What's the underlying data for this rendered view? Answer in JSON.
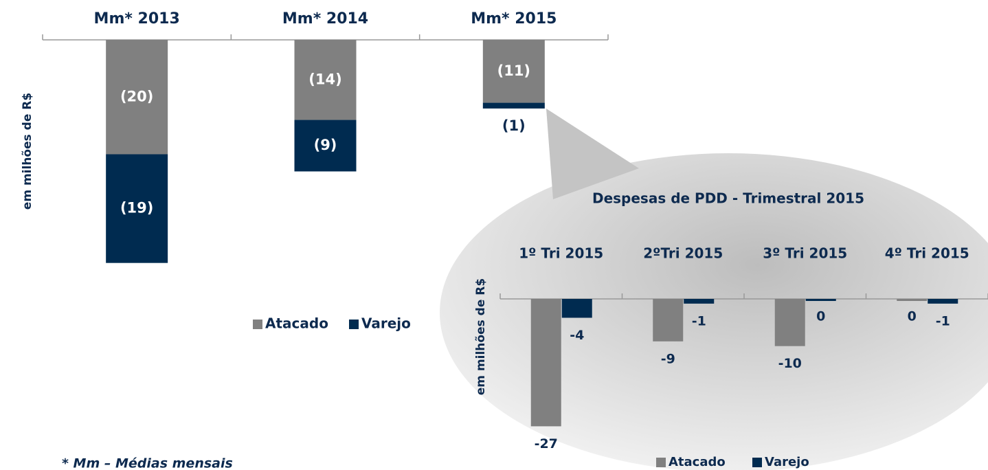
{
  "chart_data": [
    {
      "type": "bar",
      "stacked": true,
      "categories": [
        "Mm*  2013",
        "Mm*  2014",
        "Mm* 2015"
      ],
      "y_label": "em  milhões de R$",
      "ylim": [
        -40,
        0
      ],
      "legend": "bottom",
      "series": [
        {
          "name": "Atacado",
          "color": "#808080",
          "values": [
            -20,
            -14,
            -11
          ],
          "value_labels": [
            "(20)",
            "(14)",
            "(11)"
          ]
        },
        {
          "name": "Varejo",
          "color": "#002b50",
          "values": [
            -19,
            -9,
            -1
          ],
          "value_labels": [
            "(19)",
            "(9)",
            "(1)"
          ]
        }
      ]
    },
    {
      "type": "bar",
      "stacked": false,
      "title": "Despesas de PDD - Trimestral 2015",
      "categories": [
        "1º Tri 2015",
        "2ºTri 2015",
        "3º Tri 2015",
        "4º Tri 2015"
      ],
      "y_label": "em  milhões de R$",
      "ylim": [
        -30,
        0
      ],
      "legend": "bottom",
      "series": [
        {
          "name": "Atacado",
          "color": "#808080",
          "values": [
            -27,
            -9,
            -10,
            0
          ]
        },
        {
          "name": "Varejo",
          "color": "#002b50",
          "values": [
            -4,
            -1,
            0,
            -1
          ]
        }
      ]
    }
  ],
  "footnote": "*  Mm – Médias mensais"
}
